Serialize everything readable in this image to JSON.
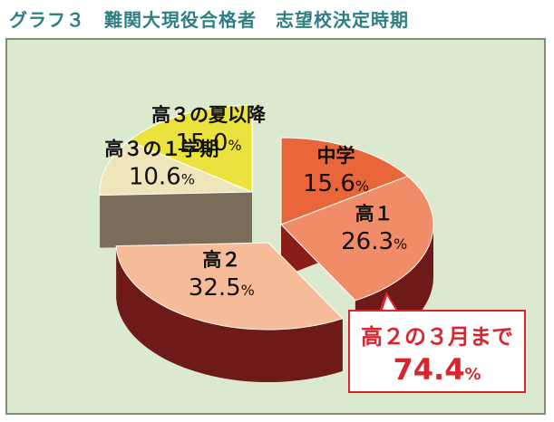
{
  "title": "グラフ３　難関大現役合格者　志望校決定時期",
  "chart_data": {
    "type": "pie",
    "slices": [
      {
        "name": "中学",
        "value": 15.6,
        "label": "15.6",
        "color": "#e8663a"
      },
      {
        "name": "高１",
        "value": 26.3,
        "label": "26.3",
        "color": "#f08c68"
      },
      {
        "name": "高２",
        "value": 32.5,
        "label": "32.5",
        "color": "#f6bb99"
      },
      {
        "name": "高３の１学期",
        "value": 10.6,
        "label": "10.6",
        "color": "#eee6ba"
      },
      {
        "name": "高３の夏以降",
        "value": 15.0,
        "label": "15.0",
        "color": "#ece23e"
      }
    ],
    "unit": "%",
    "callout": {
      "text": "高２の３月まで",
      "value": "74.4",
      "unit": "%"
    }
  }
}
